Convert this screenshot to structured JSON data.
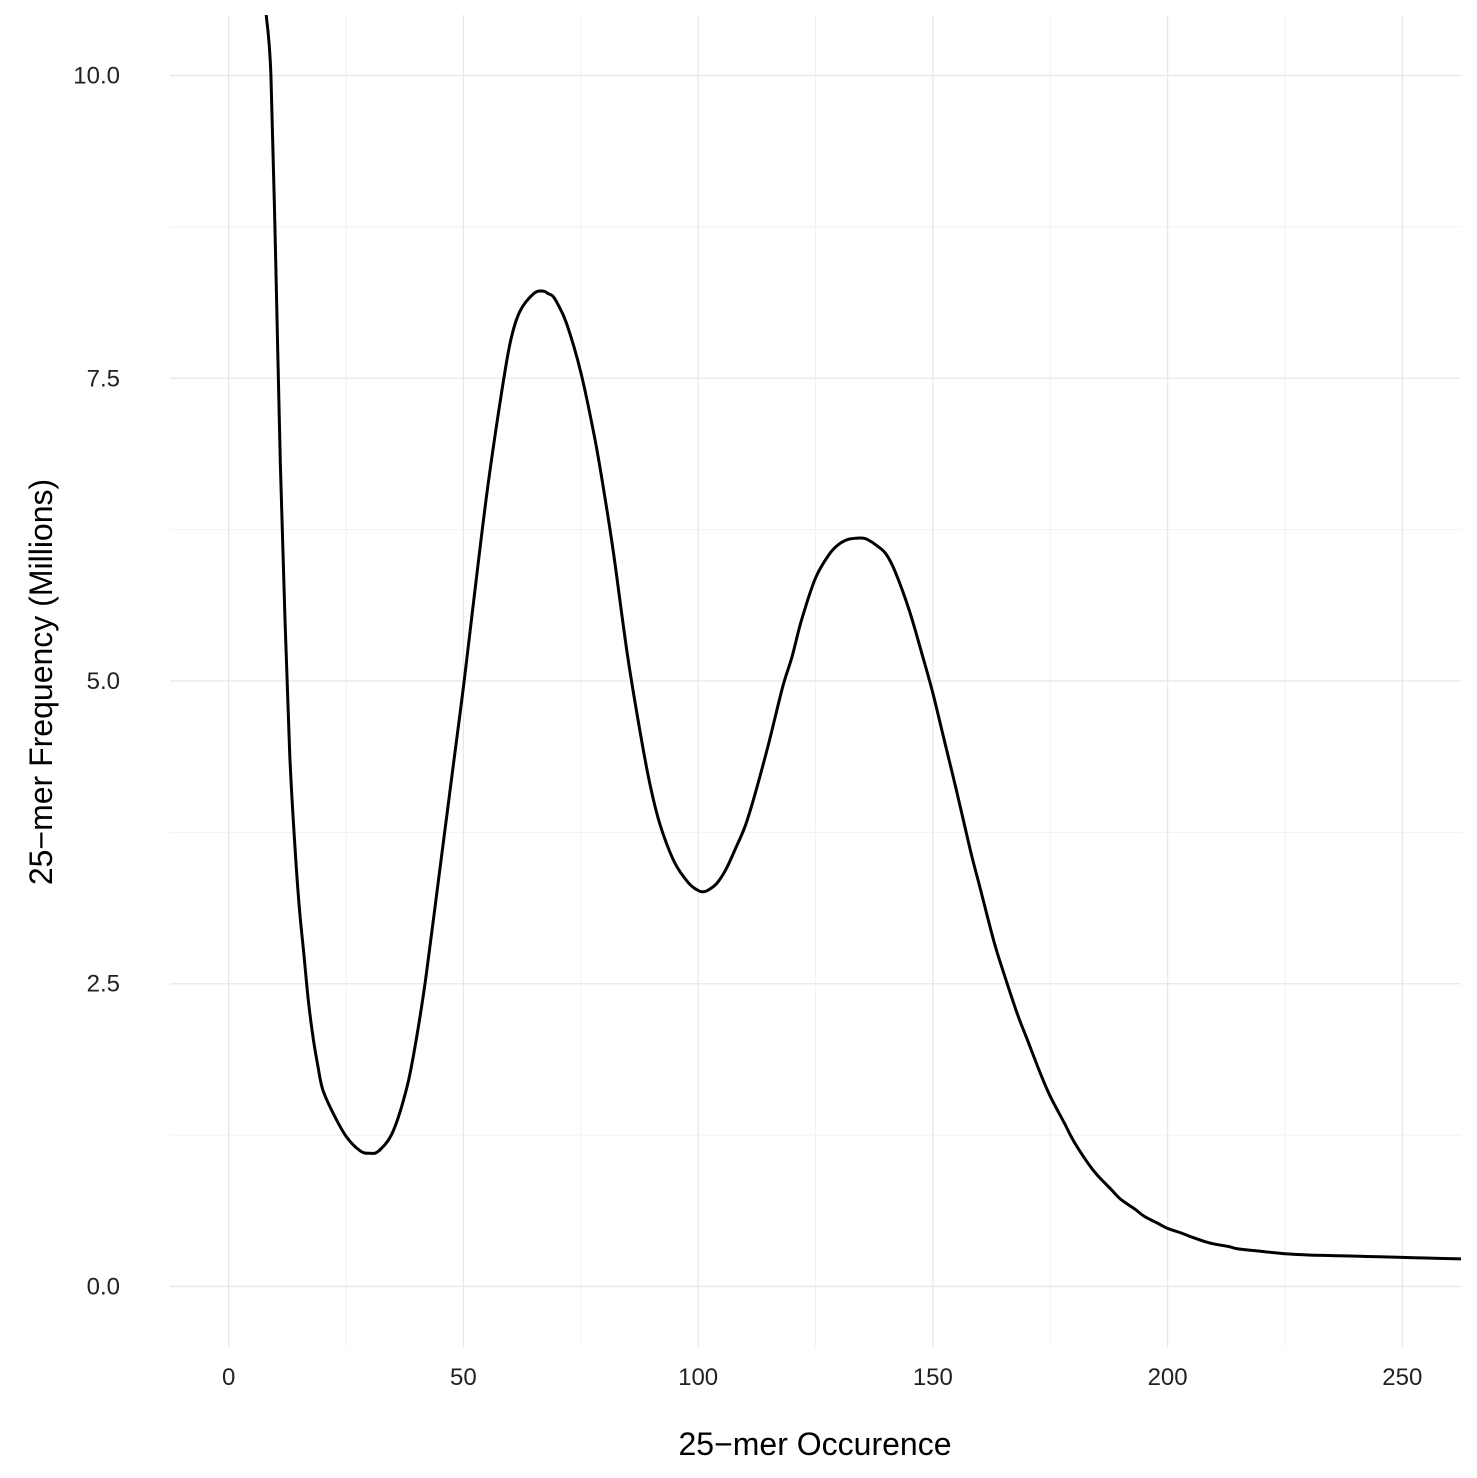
{
  "chart_data": {
    "type": "line",
    "title": "",
    "xlabel": "25−mer Occurence",
    "ylabel": "25−mer Frequency (Millions)",
    "xlim": [
      -12.5,
      262.5
    ],
    "ylim": [
      -0.5,
      10.5
    ],
    "x_ticks": [
      0,
      50,
      100,
      150,
      200,
      250
    ],
    "x_tick_labels": [
      "0",
      "50",
      "100",
      "150",
      "200",
      "250"
    ],
    "y_ticks": [
      0,
      2.5,
      5,
      7.5,
      10
    ],
    "y_tick_labels": [
      "0.0",
      "2.5",
      "5.0",
      "7.5",
      "10.0"
    ],
    "grid": true,
    "legend": "none",
    "series": [
      {
        "color": "#000000",
        "x": [
          8,
          9,
          10,
          11,
          12,
          13,
          14,
          15,
          16,
          17,
          18,
          19,
          20,
          22,
          25,
          28,
          30,
          32,
          35,
          38,
          40,
          42,
          45,
          48,
          50,
          52,
          55,
          58,
          60,
          62,
          65,
          67,
          68,
          69,
          70,
          72,
          75,
          78,
          80,
          82,
          85,
          88,
          90,
          92,
          95,
          98,
          100,
          101,
          102,
          104,
          106,
          108,
          110,
          112,
          115,
          118,
          120,
          122,
          125,
          128,
          130,
          132,
          134,
          135,
          136,
          138,
          140,
          142,
          145,
          148,
          150,
          152,
          155,
          158,
          160,
          163,
          165,
          168,
          170,
          173,
          175,
          178,
          180,
          183,
          185,
          188,
          190,
          193,
          195,
          198,
          200,
          203,
          205,
          208,
          210,
          213,
          215,
          220,
          225,
          230,
          235,
          240,
          245,
          250,
          255,
          260,
          262.5
        ],
        "y": [
          10.5,
          10.0,
          8.5,
          6.8,
          5.5,
          4.4,
          3.7,
          3.15,
          2.75,
          2.35,
          2.05,
          1.82,
          1.63,
          1.45,
          1.24,
          1.12,
          1.1,
          1.12,
          1.28,
          1.65,
          2.05,
          2.55,
          3.45,
          4.35,
          4.95,
          5.6,
          6.55,
          7.35,
          7.8,
          8.05,
          8.2,
          8.22,
          8.2,
          8.18,
          8.12,
          7.95,
          7.55,
          7.0,
          6.55,
          6.05,
          5.2,
          4.5,
          4.1,
          3.8,
          3.5,
          3.33,
          3.27,
          3.26,
          3.27,
          3.33,
          3.45,
          3.62,
          3.8,
          4.05,
          4.48,
          4.95,
          5.2,
          5.5,
          5.85,
          6.05,
          6.13,
          6.17,
          6.18,
          6.18,
          6.17,
          6.12,
          6.05,
          5.9,
          5.58,
          5.18,
          4.9,
          4.58,
          4.1,
          3.6,
          3.3,
          2.85,
          2.6,
          2.25,
          2.05,
          1.75,
          1.57,
          1.35,
          1.2,
          1.02,
          0.92,
          0.8,
          0.72,
          0.64,
          0.58,
          0.52,
          0.48,
          0.44,
          0.41,
          0.37,
          0.35,
          0.33,
          0.31,
          0.29,
          0.27,
          0.26,
          0.255,
          0.25,
          0.245,
          0.24,
          0.235,
          0.23,
          0.228
        ]
      }
    ]
  }
}
